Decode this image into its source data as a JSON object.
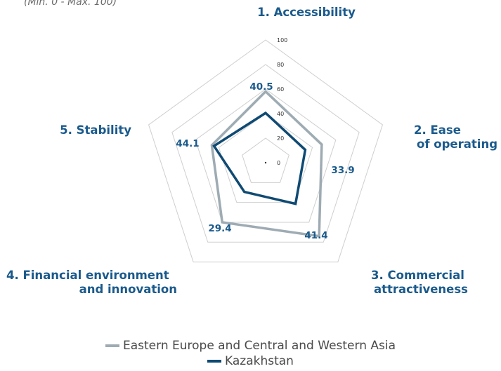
{
  "chart_data": {
    "type": "radar",
    "subtitle": "(Min. 0 - Max. 100)",
    "axes": [
      "1. Accessibility",
      "2. Ease of operating",
      "3. Commercial attractiveness",
      "4. Financial environment and innovation",
      "5. Stability"
    ],
    "axis_title_lines": [
      [
        "1. Accessibility"
      ],
      [
        "2. Ease",
        "of operating"
      ],
      [
        "3. Commercial",
        "attractiveness"
      ],
      [
        "4. Financial environment",
        "and innovation"
      ],
      [
        "5. Stability"
      ]
    ],
    "rlim": [
      0,
      100
    ],
    "ticks": [
      0,
      20,
      40,
      60,
      80,
      100
    ],
    "series": [
      {
        "name": "Eastern Europe and Central and Western Asia",
        "color": "#9eabb3",
        "values": [
          58,
          48,
          74,
          60,
          46
        ]
      },
      {
        "name": "Kazakhstan",
        "color": "#0f4a73",
        "values": [
          40.5,
          33.9,
          41.4,
          29.4,
          44.1
        ]
      }
    ],
    "value_labels": [
      "40.5",
      "33.9",
      "41.4",
      "29.4",
      "44.1"
    ],
    "grid": true,
    "legend_position": "bottom-center"
  }
}
